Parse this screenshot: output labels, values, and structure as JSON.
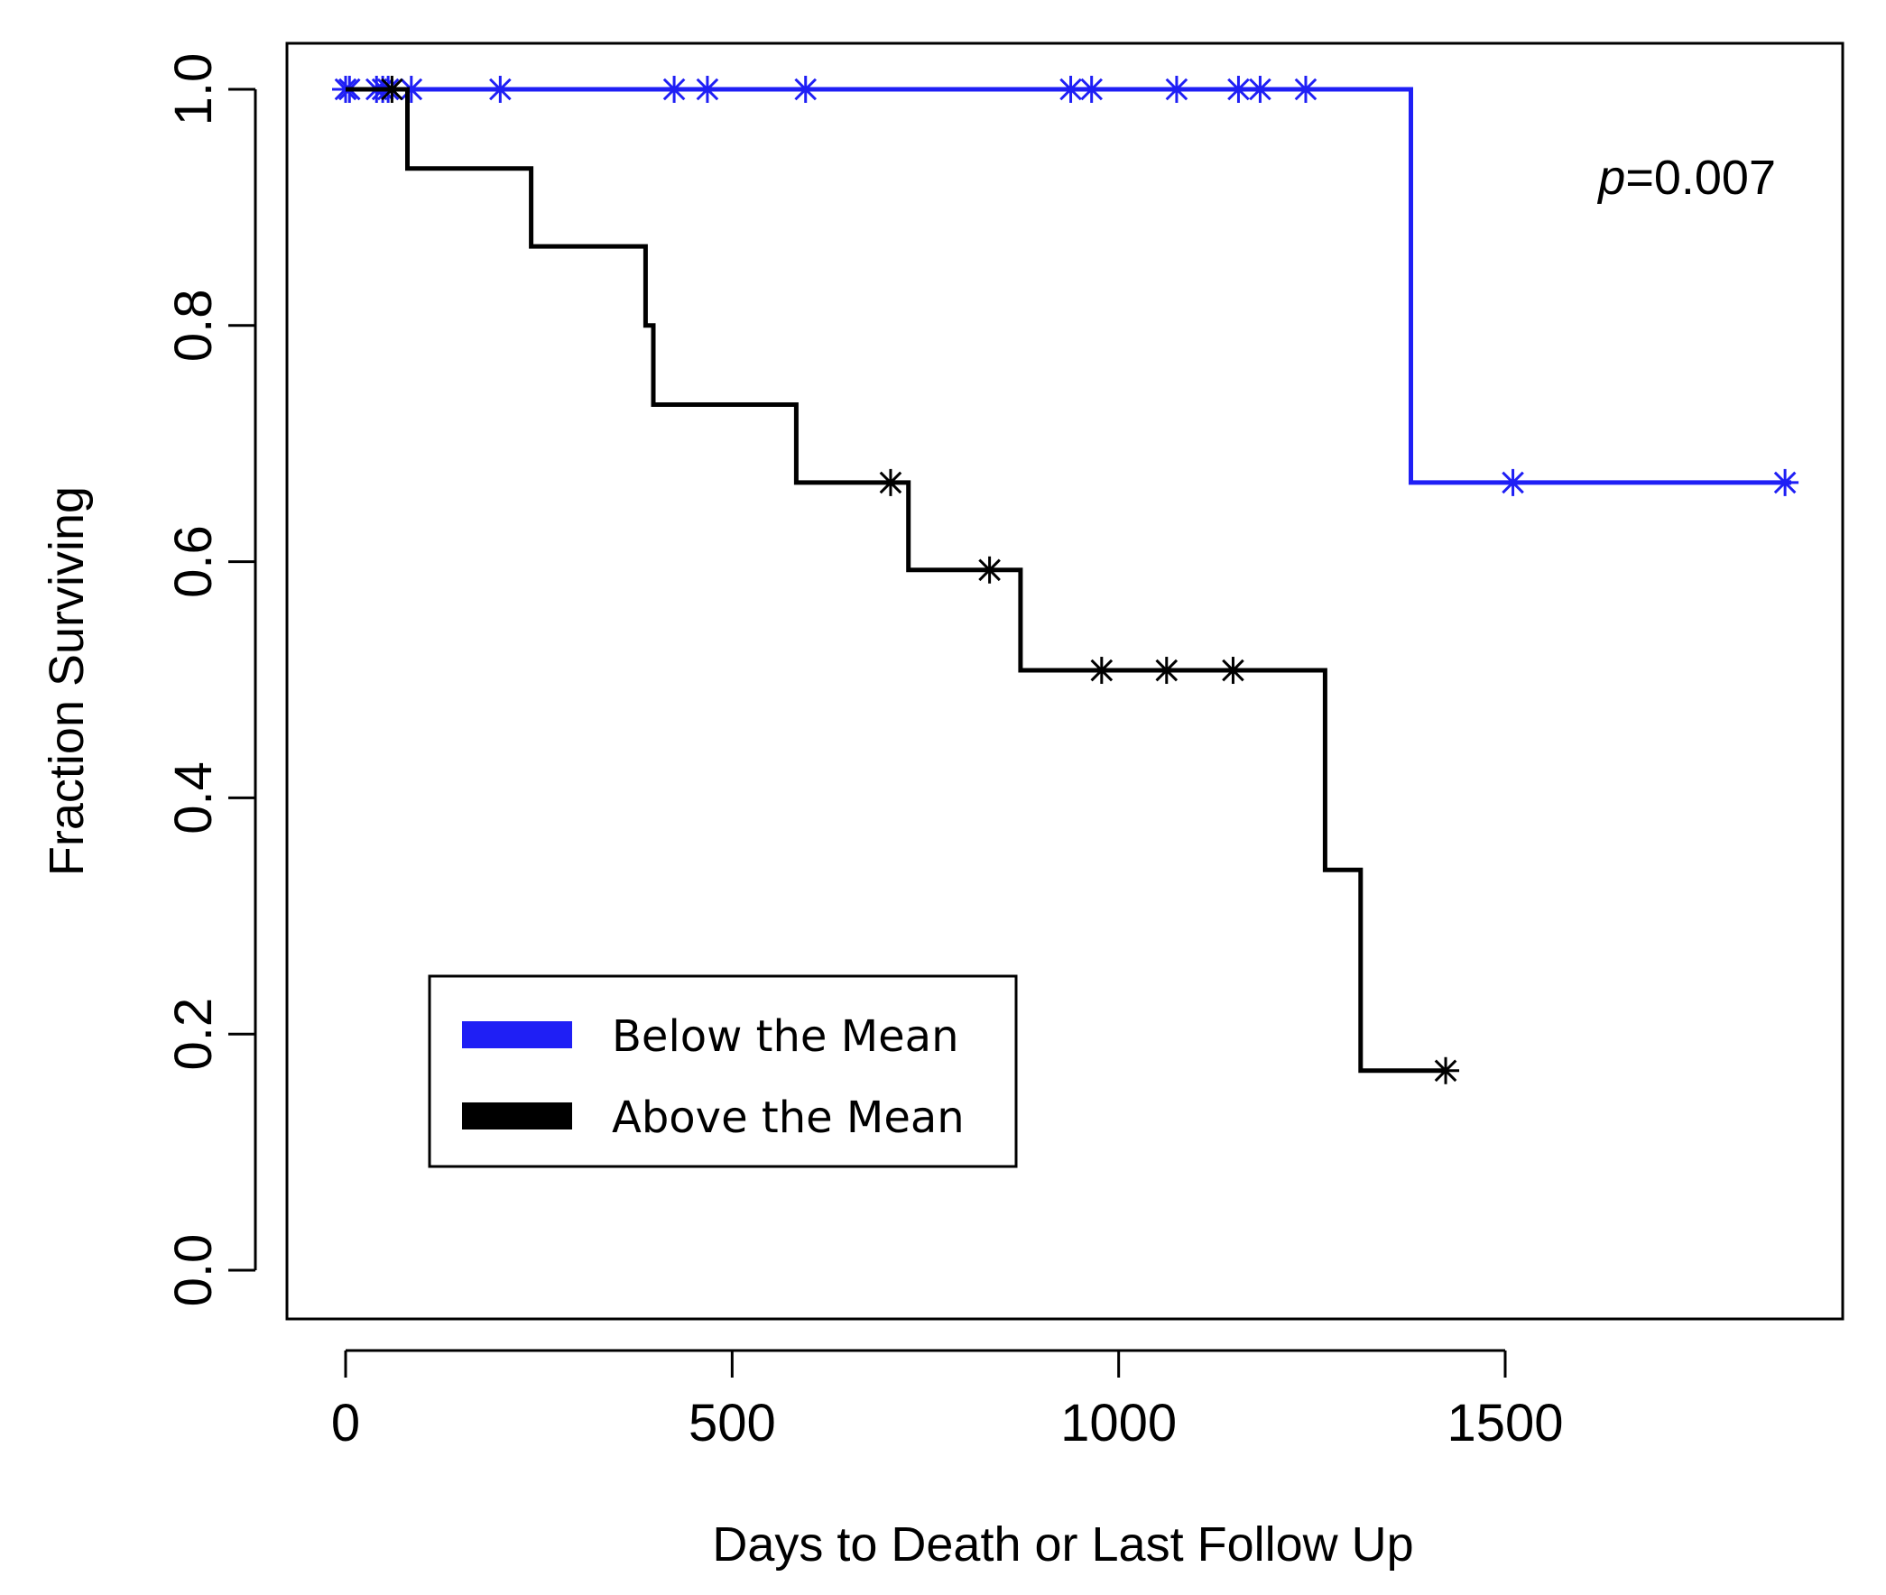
{
  "chart_data": {
    "type": "line",
    "subtype": "kaplan-meier",
    "xlabel": "Days to Death or Last Follow Up",
    "ylabel": "Fraction Surviving",
    "xlim": [
      -150,
      1900
    ],
    "ylim": [
      -0.04,
      1.04
    ],
    "xticks": [
      0,
      500,
      1000,
      1500
    ],
    "yticks": [
      0.0,
      0.2,
      0.4,
      0.6,
      0.8,
      1.0
    ],
    "xtick_labels": [
      "0",
      "500",
      "1000",
      "1500"
    ],
    "ytick_labels": [
      "0.0",
      "0.2",
      "0.4",
      "0.6",
      "0.8",
      "1.0"
    ],
    "annotation": {
      "italic": "p",
      "rest": "=0.007"
    },
    "legend_position": "bottom-left",
    "series": [
      {
        "name": "Below the Mean",
        "color": "#1f1ff5",
        "steps": [
          [
            0,
            1.0
          ],
          [
            1378,
            1.0
          ],
          [
            1378,
            0.667
          ],
          [
            1870,
            0.667
          ]
        ],
        "censored": [
          [
            0,
            1.0
          ],
          [
            5,
            1.0
          ],
          [
            40,
            1.0
          ],
          [
            48,
            1.0
          ],
          [
            55,
            1.0
          ],
          [
            85,
            1.0
          ],
          [
            200,
            1.0
          ],
          [
            425,
            1.0
          ],
          [
            468,
            1.0
          ],
          [
            595,
            1.0
          ],
          [
            938,
            1.0
          ],
          [
            965,
            1.0
          ],
          [
            1075,
            1.0
          ],
          [
            1155,
            1.0
          ],
          [
            1183,
            1.0
          ],
          [
            1242,
            1.0
          ],
          [
            1510,
            0.667
          ],
          [
            1862,
            0.667
          ]
        ]
      },
      {
        "name": "Above the Mean",
        "color": "#000000",
        "steps": [
          [
            0,
            1.0
          ],
          [
            80,
            1.0
          ],
          [
            80,
            0.933
          ],
          [
            240,
            0.933
          ],
          [
            240,
            0.867
          ],
          [
            388,
            0.867
          ],
          [
            388,
            0.8
          ],
          [
            398,
            0.8
          ],
          [
            398,
            0.733
          ],
          [
            583,
            0.733
          ],
          [
            583,
            0.667
          ],
          [
            728,
            0.667
          ],
          [
            728,
            0.593
          ],
          [
            873,
            0.593
          ],
          [
            873,
            0.508
          ],
          [
            1267,
            0.508
          ],
          [
            1267,
            0.339
          ],
          [
            1313,
            0.339
          ],
          [
            1313,
            0.169
          ],
          [
            1423,
            0.169
          ]
        ],
        "censored": [
          [
            60,
            1.0
          ],
          [
            705,
            0.667
          ],
          [
            833,
            0.593
          ],
          [
            978,
            0.508
          ],
          [
            1062,
            0.508
          ],
          [
            1148,
            0.508
          ],
          [
            1423,
            0.169
          ]
        ]
      }
    ]
  }
}
